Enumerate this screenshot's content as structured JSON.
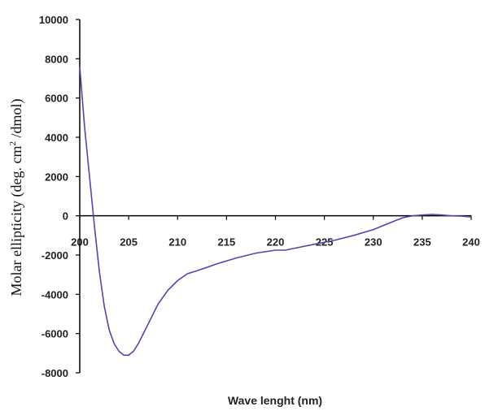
{
  "chart_data": {
    "type": "line",
    "title": "",
    "xlabel": "Wave lenght (nm)",
    "ylabel_parts": [
      "Molar ellipticity (deg. cm",
      "2",
      " /dmol)"
    ],
    "xlim": [
      200,
      240
    ],
    "ylim": [
      -8000,
      10000
    ],
    "xticks": [
      200,
      205,
      210,
      215,
      220,
      225,
      230,
      235,
      240
    ],
    "yticks": [
      10000,
      8000,
      6000,
      4000,
      2000,
      0,
      -2000,
      -4000,
      -6000,
      -8000
    ],
    "grid": false,
    "legend": "none",
    "line_color": "#4a4aa8",
    "series": [
      {
        "x": [
          200,
          200.5,
          201,
          201.5,
          202,
          202.5,
          203,
          203.5,
          204,
          204.5,
          205,
          205.5,
          206,
          207,
          208,
          209,
          210,
          211,
          212,
          214,
          216,
          218,
          220,
          221,
          222,
          224,
          226,
          228,
          230,
          232,
          233,
          234,
          235,
          236,
          237,
          238,
          239,
          240
        ],
        "y": [
          7600,
          4500,
          2000,
          -500,
          -2800,
          -4600,
          -5800,
          -6500,
          -6900,
          -7100,
          -7100,
          -6900,
          -6500,
          -5500,
          -4500,
          -3800,
          -3300,
          -2950,
          -2800,
          -2450,
          -2150,
          -1900,
          -1750,
          -1750,
          -1650,
          -1450,
          -1250,
          -1000,
          -700,
          -300,
          -100,
          0,
          40,
          70,
          40,
          0,
          -20,
          -60
        ]
      }
    ]
  }
}
